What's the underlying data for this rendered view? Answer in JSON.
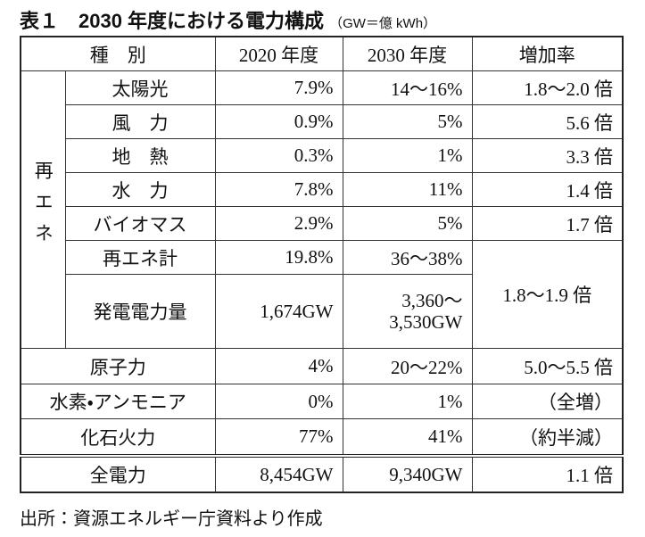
{
  "header": {
    "title": "表１　2030 年度における電力構成",
    "unit": "（GW＝億 kWh）"
  },
  "table": {
    "columns": [
      "種　別",
      "2020 年度",
      "2030 年度",
      "増加率"
    ],
    "group": "再エネ",
    "rows": [
      [
        "太陽光",
        "7.9%",
        "14～16%",
        "1.8～2.0 倍"
      ],
      [
        "風　力",
        "0.9%",
        "5%",
        "5.6 倍"
      ],
      [
        "地　熱",
        "0.3%",
        "1%",
        "3.3 倍"
      ],
      [
        "水　力",
        "7.8%",
        "11%",
        "1.4 倍"
      ],
      [
        "バイオマス",
        "2.9%",
        "5%",
        "1.7 倍"
      ],
      [
        "再エネ計",
        "19.8%",
        "36～38%",
        "1.8～1.9 倍"
      ],
      [
        "発電電力量",
        "1,674GW",
        "3,360～\n3,530GW"
      ],
      [
        "原子力",
        "4%",
        "20～22%",
        "5.0～5.5 倍"
      ],
      [
        "水素・アンモニア",
        "0%",
        "1%",
        "（全増）"
      ],
      [
        "化石火力",
        "77%",
        "41%",
        "（約半減）"
      ],
      [
        "全電力",
        "8,454GW",
        "9,340GW",
        "1.1 倍"
      ]
    ]
  },
  "source": "出所：資源エネルギー庁資料より作成"
}
